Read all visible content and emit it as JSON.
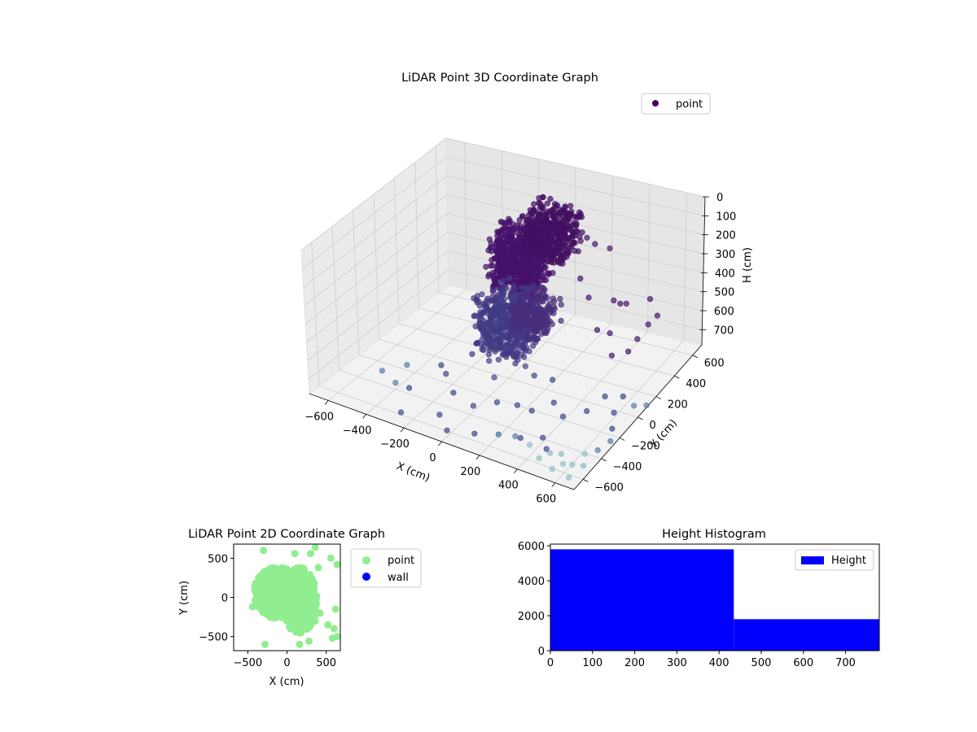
{
  "chart_data": [
    {
      "type": "scatter",
      "projection": "3d",
      "title": "LiDAR Point 3D Coordinate Graph",
      "xlabel": "X (cm)",
      "ylabel": "Y (cm)",
      "zlabel": "H (cm)",
      "xlim": [
        -700,
        700
      ],
      "ylim": [
        -700,
        700
      ],
      "zlim": [
        0,
        780
      ],
      "z_inverted": true,
      "xticks": [
        -600,
        -400,
        -200,
        0,
        200,
        400,
        600
      ],
      "yticks": [
        -600,
        -400,
        -200,
        0,
        200,
        400,
        600
      ],
      "zticks": [
        0,
        100,
        200,
        300,
        400,
        500,
        600,
        700
      ],
      "grid": true,
      "legend": {
        "position": "top-right",
        "entries": [
          "point"
        ]
      },
      "colormap": "viridis",
      "legend_color": "#440154",
      "series": [
        {
          "name": "point",
          "clusters": [
            {
              "x": [
                -120,
                120
              ],
              "y": [
                -40,
                220
              ],
              "h": [
                40,
                340
              ],
              "color": "#46116b",
              "count": 650
            },
            {
              "x": [
                -60,
                180
              ],
              "y": [
                180,
                420
              ],
              "h": [
                20,
                240
              ],
              "color": "#430f62",
              "count": 420
            },
            {
              "x": [
                -100,
                160
              ],
              "y": [
                -260,
                60
              ],
              "h": [
                280,
                560
              ],
              "color": "#433a84",
              "count": 520
            },
            {
              "x": [
                80,
                260
              ],
              "y": [
                -200,
                40
              ],
              "h": [
                260,
                430
              ],
              "color": "#472d7b",
              "count": 160
            }
          ],
          "points": [
            {
              "x": 240,
              "y": 330,
              "h": 130,
              "color": "#46166b"
            },
            {
              "x": 310,
              "y": 280,
              "h": 120,
              "color": "#46166b"
            },
            {
              "x": 360,
              "y": 340,
              "h": 160,
              "color": "#46166b"
            },
            {
              "x": 280,
              "y": 180,
              "h": 260,
              "color": "#46166b"
            },
            {
              "x": 340,
              "y": 150,
              "h": 330,
              "color": "#46166b"
            },
            {
              "x": 420,
              "y": 260,
              "h": 380,
              "color": "#46166b"
            },
            {
              "x": 520,
              "y": 200,
              "h": 340,
              "color": "#46166b"
            },
            {
              "x": 500,
              "y": 60,
              "h": 430,
              "color": "#46166b"
            },
            {
              "x": 560,
              "y": -40,
              "h": 480,
              "color": "#46166b"
            },
            {
              "x": 600,
              "y": 60,
              "h": 500,
              "color": "#46166b"
            },
            {
              "x": 620,
              "y": 120,
              "h": 460,
              "color": "#46166b"
            },
            {
              "x": 640,
              "y": 200,
              "h": 420,
              "color": "#46166b"
            },
            {
              "x": 660,
              "y": 260,
              "h": 400,
              "color": "#46166b"
            },
            {
              "x": 560,
              "y": 380,
              "h": 400,
              "color": "#46166b"
            },
            {
              "x": 430,
              "y": 310,
              "h": 420,
              "color": "#46166b"
            },
            {
              "x": 400,
              "y": 120,
              "h": 470,
              "color": "#46166b"
            },
            {
              "x": -500,
              "y": -420,
              "h": 690,
              "color": "#5d7da4"
            },
            {
              "x": -420,
              "y": -440,
              "h": 720,
              "color": "#5d7da4"
            },
            {
              "x": -380,
              "y": -380,
              "h": 760,
              "color": "#3f4889"
            },
            {
              "x": -300,
              "y": -620,
              "h": 760,
              "color": "#3f4889"
            },
            {
              "x": -120,
              "y": -560,
              "h": 740,
              "color": "#3f4889"
            },
            {
              "x": -40,
              "y": -640,
              "h": 760,
              "color": "#3f4889"
            },
            {
              "x": 100,
              "y": -620,
              "h": 740,
              "color": "#3f4889"
            },
            {
              "x": 200,
              "y": -560,
              "h": 740,
              "color": "#4a6ea0"
            },
            {
              "x": 260,
              "y": -500,
              "h": 760,
              "color": "#5d7da4"
            },
            {
              "x": 320,
              "y": -560,
              "h": 720,
              "color": "#3f4889"
            },
            {
              "x": 380,
              "y": -440,
              "h": 760,
              "color": "#3f4889"
            },
            {
              "x": 440,
              "y": -520,
              "h": 760,
              "color": "#3f4889"
            },
            {
              "x": 400,
              "y": -620,
              "h": 700,
              "color": "#8fbfc6"
            },
            {
              "x": 460,
              "y": -640,
              "h": 740,
              "color": "#8fbfc6"
            },
            {
              "x": 500,
              "y": -600,
              "h": 720,
              "color": "#8fbfc6"
            },
            {
              "x": 540,
              "y": -660,
              "h": 760,
              "color": "#8fbfc6"
            },
            {
              "x": 580,
              "y": -620,
              "h": 740,
              "color": "#8fbfc6"
            },
            {
              "x": 520,
              "y": -520,
              "h": 760,
              "color": "#8fbfc6"
            },
            {
              "x": 600,
              "y": -560,
              "h": 770,
              "color": "#8fbfc6"
            },
            {
              "x": 620,
              "y": -460,
              "h": 760,
              "color": "#8fbfc6"
            },
            {
              "x": 660,
              "y": -400,
              "h": 760,
              "color": "#5d7da4"
            },
            {
              "x": 680,
              "y": -300,
              "h": 760,
              "color": "#5d7da4"
            },
            {
              "x": 640,
              "y": -200,
              "h": 760,
              "color": "#3f4889"
            },
            {
              "x": 600,
              "y": -100,
              "h": 740,
              "color": "#3f4889"
            },
            {
              "x": 660,
              "y": 0,
              "h": 740,
              "color": "#5d7da4"
            },
            {
              "x": 700,
              "y": 60,
              "h": 760,
              "color": "#5d7da4"
            },
            {
              "x": 560,
              "y": 80,
              "h": 760,
              "color": "#3f4889"
            },
            {
              "x": 480,
              "y": 40,
              "h": 760,
              "color": "#3f4889"
            },
            {
              "x": 460,
              "y": -120,
              "h": 760,
              "color": "#3f4889"
            },
            {
              "x": 380,
              "y": -220,
              "h": 760,
              "color": "#3f4889"
            },
            {
              "x": 300,
              "y": -160,
              "h": 740,
              "color": "#3f4889"
            },
            {
              "x": 240,
              "y": -280,
              "h": 740,
              "color": "#3f4889"
            },
            {
              "x": 140,
              "y": -240,
              "h": 760,
              "color": "#3f4889"
            },
            {
              "x": 60,
              "y": -300,
              "h": 740,
              "color": "#3f4889"
            },
            {
              "x": -40,
              "y": -360,
              "h": 760,
              "color": "#3f4889"
            },
            {
              "x": -180,
              "y": -300,
              "h": 760,
              "color": "#3f4889"
            },
            {
              "x": -260,
              "y": -220,
              "h": 720,
              "color": "#3f4889"
            },
            {
              "x": -340,
              "y": -120,
              "h": 740,
              "color": "#3f4889"
            },
            {
              "x": -440,
              "y": -280,
              "h": 700,
              "color": "#5d7da4"
            },
            {
              "x": 100,
              "y": 20,
              "h": 740,
              "color": "#3f4889"
            },
            {
              "x": 180,
              "y": 60,
              "h": 760,
              "color": "#3f4889"
            },
            {
              "x": 20,
              "y": 80,
              "h": 740,
              "color": "#3f4889"
            },
            {
              "x": -80,
              "y": -60,
              "h": 760,
              "color": "#3f4889"
            },
            {
              "x": -160,
              "y": 40,
              "h": 740,
              "color": "#3f4889"
            },
            {
              "x": 700,
              "y": -640,
              "h": 700,
              "color": "#8fbfc6"
            },
            {
              "x": 640,
              "y": -680,
              "h": 760,
              "color": "#8fbfc6"
            }
          ]
        }
      ]
    },
    {
      "type": "scatter",
      "title": "LiDAR Point 2D Coordinate Graph",
      "xlabel": "X (cm)",
      "ylabel": "Y (cm)",
      "xlim": [
        -680,
        680
      ],
      "ylim": [
        -680,
        680
      ],
      "xticks": [
        -500,
        0,
        500
      ],
      "yticks": [
        -500,
        0,
        500
      ],
      "grid": false,
      "legend": {
        "position": "outside-right",
        "entries": [
          "point",
          "wall"
        ]
      },
      "series": [
        {
          "name": "point",
          "color": "#90ee90",
          "clusters": [
            {
              "cx": -120,
              "cy": 60,
              "rx": 300,
              "ry": 330,
              "count": 900
            },
            {
              "cx": 160,
              "cy": -40,
              "rx": 220,
              "ry": 420,
              "count": 500
            }
          ],
          "points": [
            {
              "x": -300,
              "y": 600
            },
            {
              "x": 100,
              "y": 560
            },
            {
              "x": 300,
              "y": 560
            },
            {
              "x": 360,
              "y": 640
            },
            {
              "x": 560,
              "y": 500
            },
            {
              "x": 640,
              "y": 420
            },
            {
              "x": 600,
              "y": -400
            },
            {
              "x": 580,
              "y": -520
            },
            {
              "x": 640,
              "y": -500
            },
            {
              "x": 520,
              "y": -350
            },
            {
              "x": -280,
              "y": -600
            },
            {
              "x": 160,
              "y": -600
            },
            {
              "x": 280,
              "y": -560
            },
            {
              "x": 420,
              "y": -200
            },
            {
              "x": 620,
              "y": -150
            },
            {
              "x": 400,
              "y": 380
            },
            {
              "x": 360,
              "y": -300
            },
            {
              "x": -440,
              "y": -120
            }
          ]
        },
        {
          "name": "wall",
          "color": "#0000ff",
          "points": []
        }
      ]
    },
    {
      "type": "bar",
      "title": "Height Histogram",
      "xlim": [
        0,
        780
      ],
      "ylim": [
        0,
        6100
      ],
      "xticks": [
        0,
        100,
        200,
        300,
        400,
        500,
        600,
        700
      ],
      "yticks": [
        0,
        2000,
        4000,
        6000
      ],
      "grid": false,
      "legend": {
        "position": "top-right",
        "entries": [
          "Height"
        ]
      },
      "series": [
        {
          "name": "Height",
          "color": "#0000ff",
          "bins": [
            {
              "start": 0,
              "end": 435,
              "count": 5800
            },
            {
              "start": 435,
              "end": 780,
              "count": 1800
            }
          ]
        }
      ]
    }
  ]
}
